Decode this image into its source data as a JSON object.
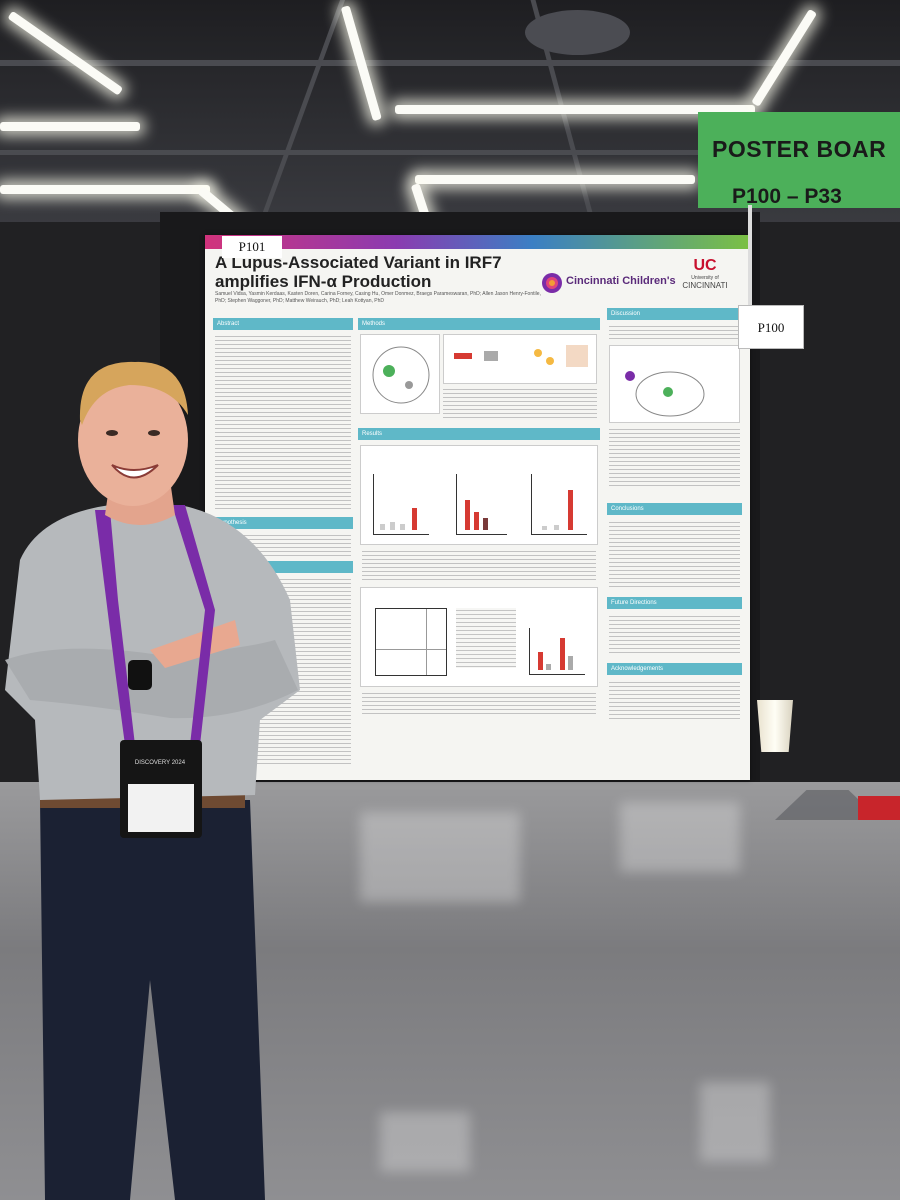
{
  "poster": {
    "board_number": "P101",
    "title": "A Lupus-Associated Variant in IRF7 amplifies IFN-α Production",
    "authors": "Samuel Vidsa, Yasmin Kerdaas, Kasten Doren, Carina Forney, Casing Hu, Omer Donmez, Braegs Parameswaran, PhD; Allen Jason Henry-Fontile, PhD; Stephen Waggoner, PhD; Matthew Weirauch, PhD; Leah Kottyan, PhD",
    "logo_left": "Cincinnati Children's",
    "logo_right_top": "University of",
    "logo_right_bottom": "CINCINNATI",
    "sections": {
      "abstract": "Abstract",
      "methods": "Methods",
      "results": "Results",
      "hypothesis": "Hypothesis",
      "discussion": "Discussion",
      "conclusions": "Conclusions",
      "future": "Future Directions",
      "ack": "Acknowledgements"
    }
  },
  "neighbor_number": "P100",
  "sign": {
    "top": "POSTER BOAR",
    "bottom": "P100 – P33"
  },
  "badge": {
    "text": "DISCOVERY 2024"
  },
  "colors": {
    "sign_green": "#4cb05a",
    "section_teal": "#5fb8c8",
    "bar_red": "#d63a32",
    "lanyard_purple": "#7a2ca8"
  }
}
